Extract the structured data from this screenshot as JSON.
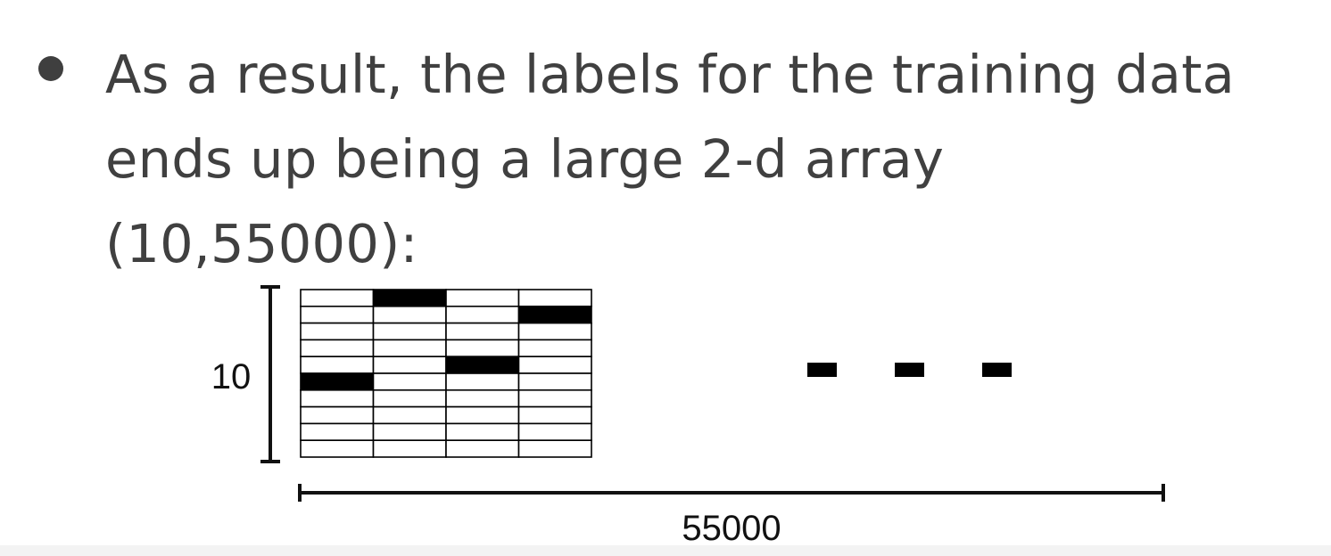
{
  "bullet": {
    "lines": [
      "As a result, the labels for the training data",
      "ends up being a large 2-d array",
      "(10,55000):"
    ]
  },
  "diagram": {
    "rows_label": "10",
    "cols_label": "55000",
    "grid_rows": 10,
    "grid_columns_shown": 4,
    "filled_cells": [
      {
        "column": 1,
        "row": 0
      },
      {
        "column": 3,
        "row": 1
      },
      {
        "column": 2,
        "row": 4
      },
      {
        "column": 0,
        "row": 5
      }
    ],
    "ellipsis_dashes": 3,
    "colors": {
      "text": "#404040",
      "ink": "#000000",
      "background": "#ffffff"
    }
  }
}
